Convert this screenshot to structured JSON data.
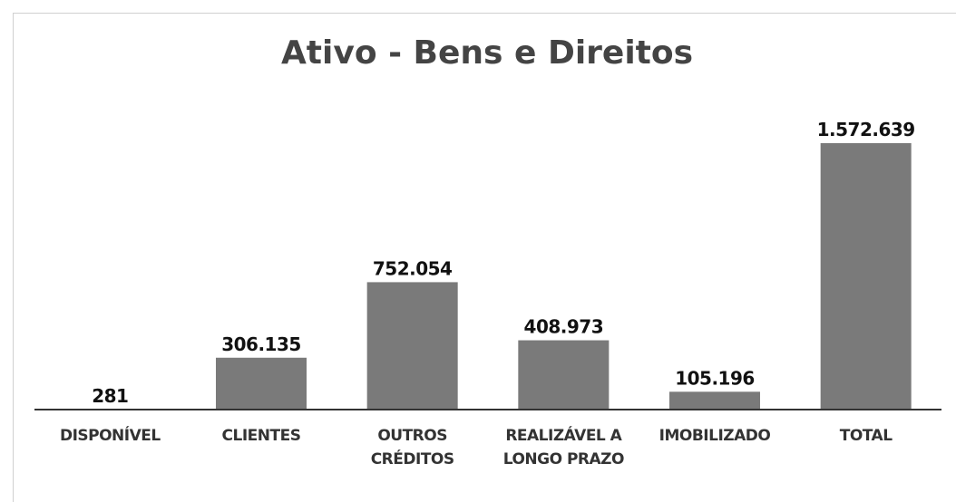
{
  "chart_data": {
    "type": "bar",
    "title": "Ativo - Bens e Direitos",
    "categories": [
      "DISPONÍVEL",
      "CLIENTES",
      "OUTROS CRÉDITOS",
      "REALIZÁVEL A LONGO PRAZO",
      "IMOBILIZADO",
      "TOTAL"
    ],
    "values": [
      281,
      306135,
      752054,
      408973,
      105196,
      1572639
    ],
    "value_labels": [
      "281",
      "306.135",
      "752.054",
      "408.973",
      "105.196",
      "1.572.639"
    ],
    "color": "#7a7a7a"
  }
}
